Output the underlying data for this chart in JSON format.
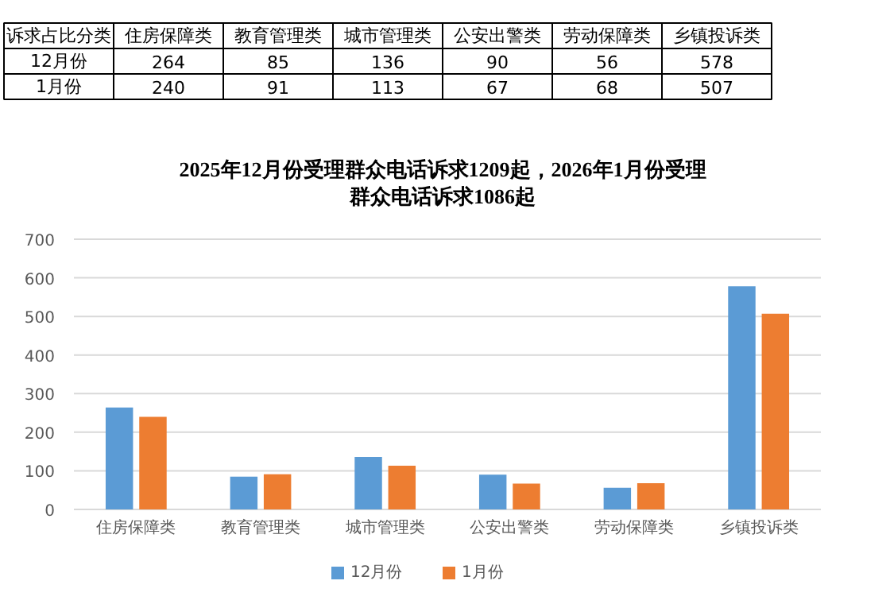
{
  "chart_data": {
    "type": "bar",
    "title": "2025年12月份受理群众电话诉求1209起，2026年1月份受理群众电话诉求1086起",
    "categories": [
      "住房保障类",
      "教育管理类",
      "城市管理类",
      "公安出警类",
      "劳动保障类",
      "乡镇投诉类"
    ],
    "series": [
      {
        "name": "12月份",
        "color": "#5b9bd5",
        "values": [
          264,
          85,
          136,
          90,
          56,
          578
        ]
      },
      {
        "name": "1月份",
        "color": "#ed7d31",
        "values": [
          240,
          91,
          113,
          67,
          68,
          507
        ]
      }
    ],
    "ylim": [
      0,
      700
    ],
    "yticks": [
      0,
      100,
      200,
      300,
      400,
      500,
      600,
      700
    ],
    "grid": "y",
    "legend": "bottom",
    "data_labels": true,
    "annotations": [
      "诉求占比分类"
    ]
  }
}
